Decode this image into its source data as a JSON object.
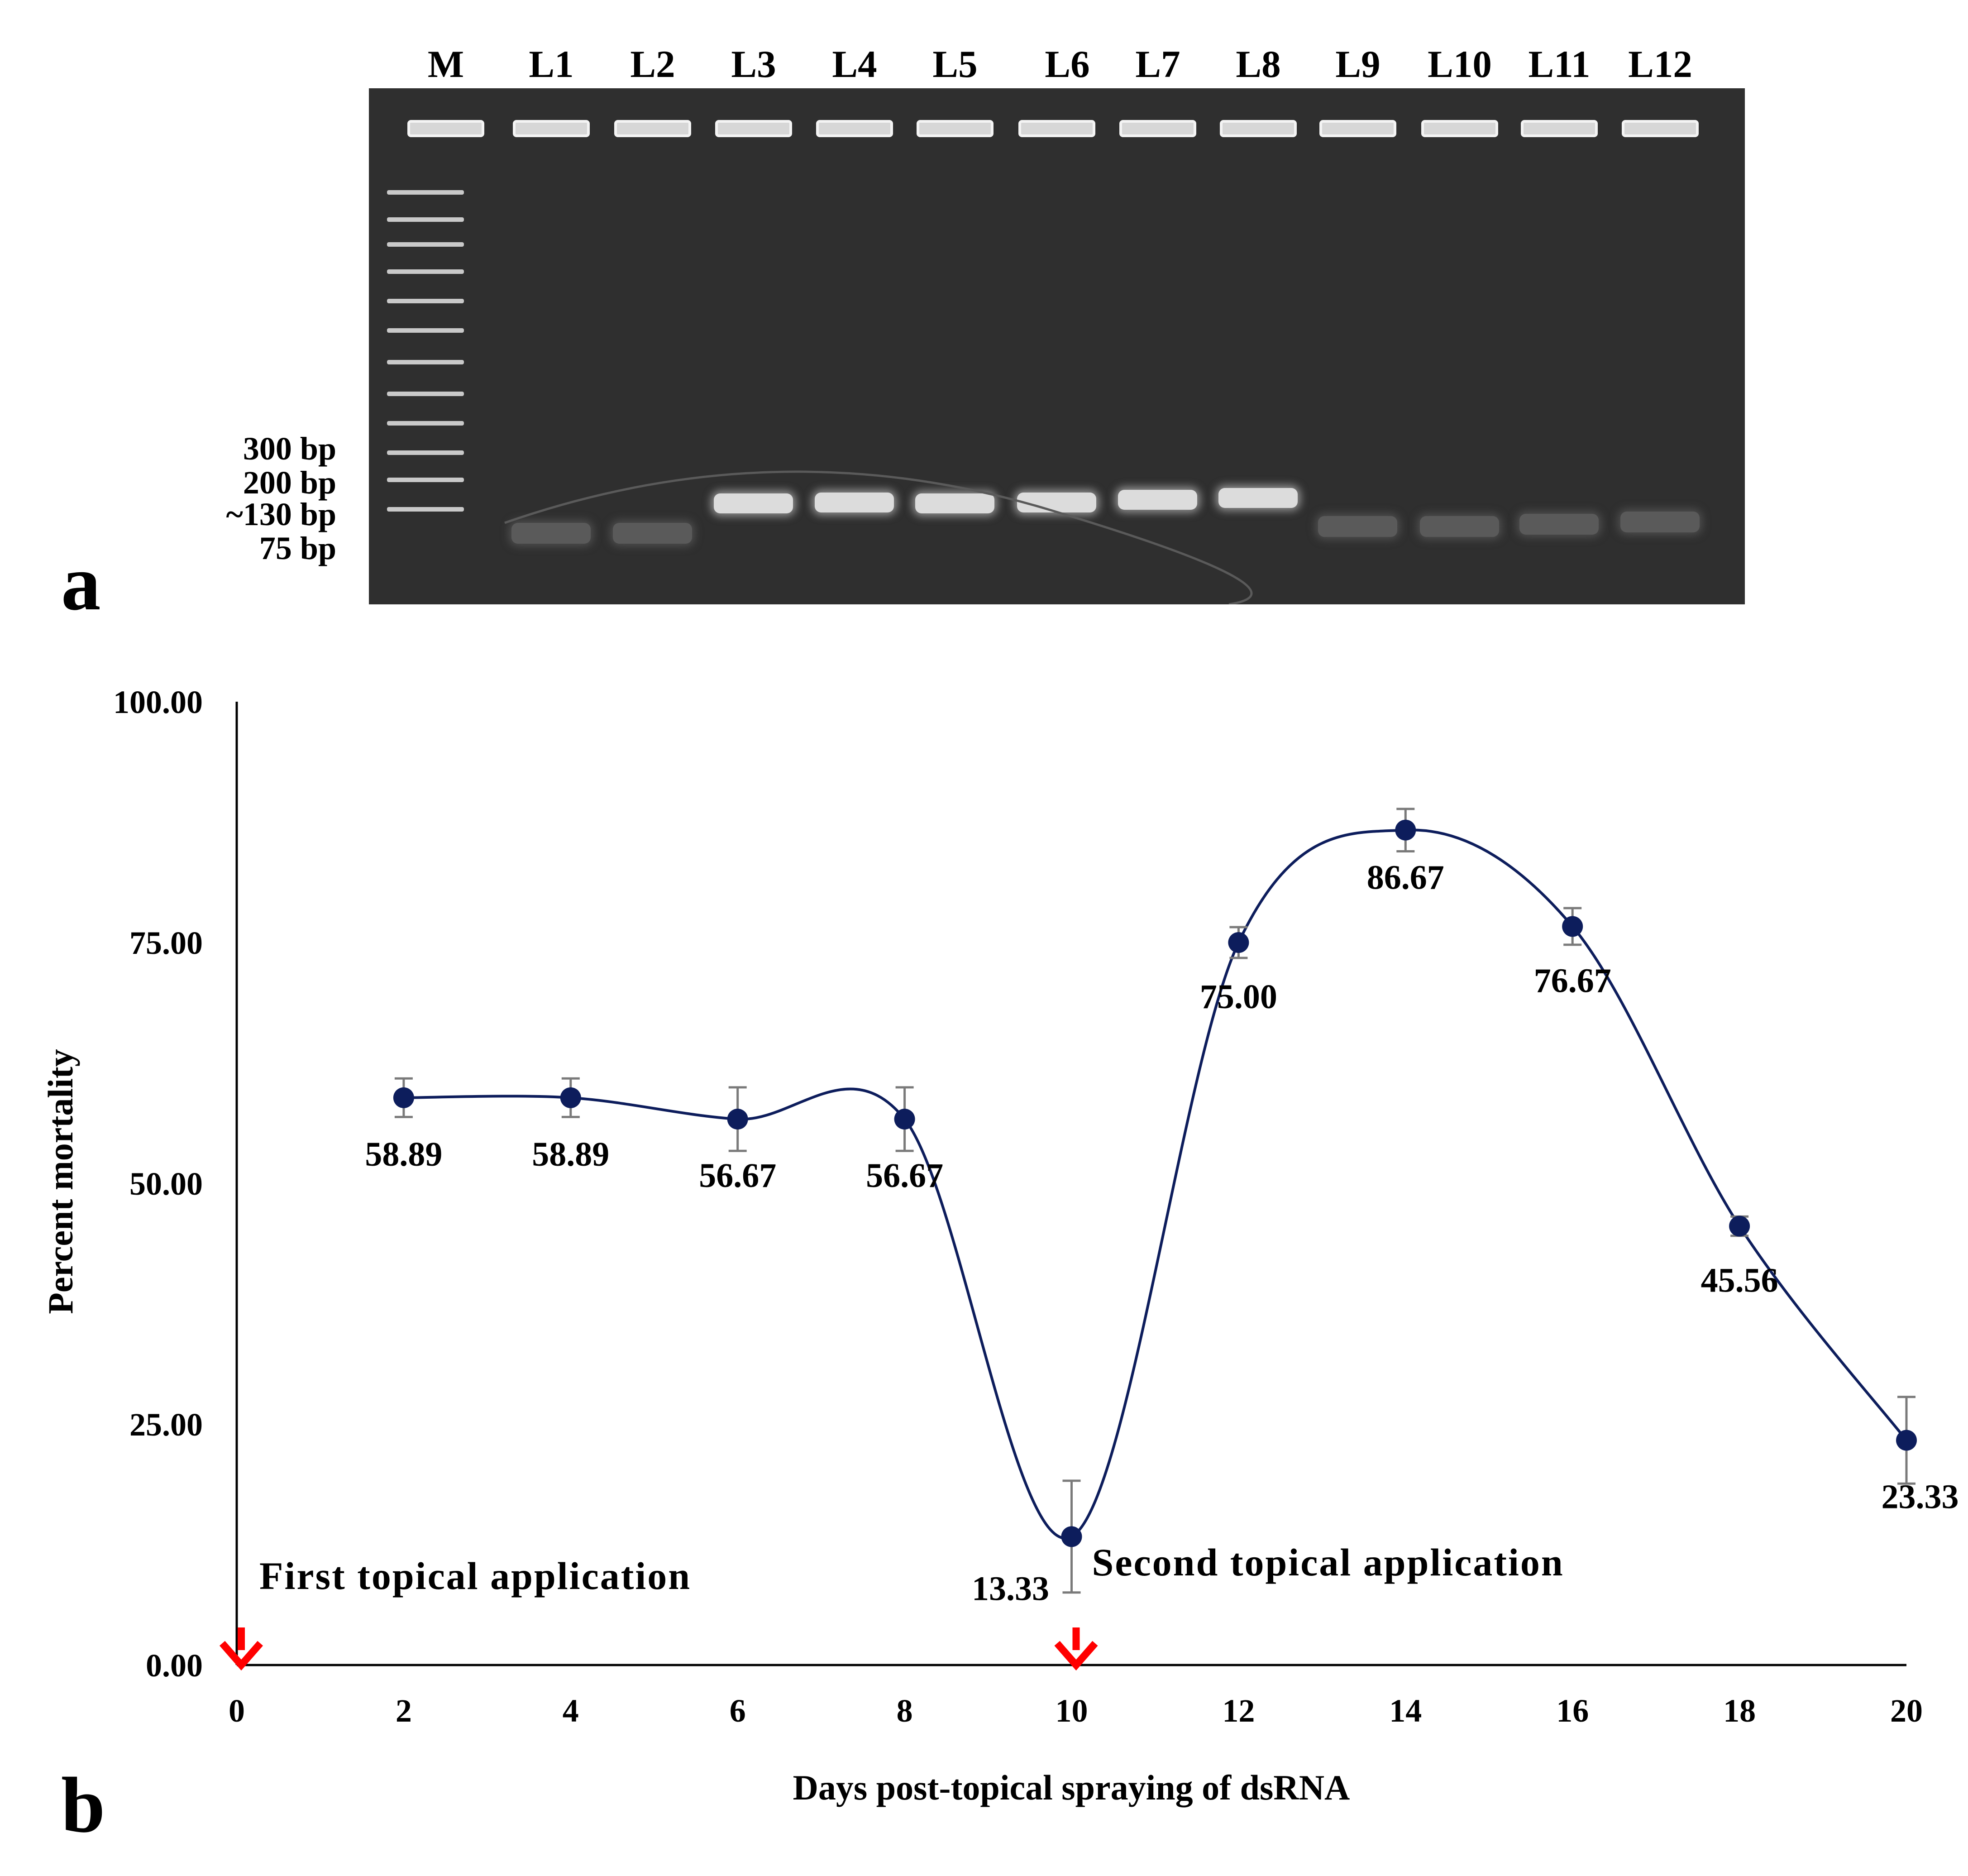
{
  "panel_a": {
    "letter": "a",
    "lanes": [
      "M",
      "L1",
      "L2",
      "L3",
      "L4",
      "L5",
      "L6",
      "L7",
      "L8",
      "L9",
      "L10",
      "L11",
      "L12"
    ],
    "marker_sizes": [
      "300 bp",
      "200 bp",
      "~130 bp",
      "75 bp"
    ]
  },
  "panel_b": {
    "letter": "b"
  },
  "chart_data": {
    "type": "line",
    "xlabel": "Days post-topical spraying of dsRNA",
    "ylabel": "Percent mortality",
    "xlim": [
      0,
      20
    ],
    "ylim": [
      0,
      100
    ],
    "x_ticks": [
      "0",
      "2",
      "4",
      "6",
      "8",
      "10",
      "12",
      "14",
      "16",
      "18",
      "20"
    ],
    "y_ticks": [
      "0.00",
      "25.00",
      "50.00",
      "75.00",
      "100.00"
    ],
    "grid": false,
    "series": [
      {
        "x": [
          2,
          4,
          6,
          8,
          10,
          12,
          14,
          16,
          18,
          20
        ],
        "y": [
          58.89,
          58.89,
          56.67,
          56.67,
          13.33,
          75.0,
          86.67,
          76.67,
          45.56,
          23.33
        ],
        "labels": [
          "58.89",
          "58.89",
          "56.67",
          "56.67",
          "13.33",
          "75.00",
          "86.67",
          "76.67",
          "45.56",
          "23.33"
        ],
        "error": [
          2.0,
          2.0,
          3.3,
          3.3,
          5.8,
          1.6,
          2.2,
          1.9,
          1.0,
          4.5
        ],
        "color": "#0d1d5c"
      }
    ],
    "error_bar_color": "#7a7a7a",
    "annotations": [
      {
        "text": "First topical application",
        "x": 0,
        "arrow_color": "#ff0000"
      },
      {
        "text": "Second topical application",
        "x": 10,
        "arrow_color": "#ff0000"
      }
    ]
  }
}
